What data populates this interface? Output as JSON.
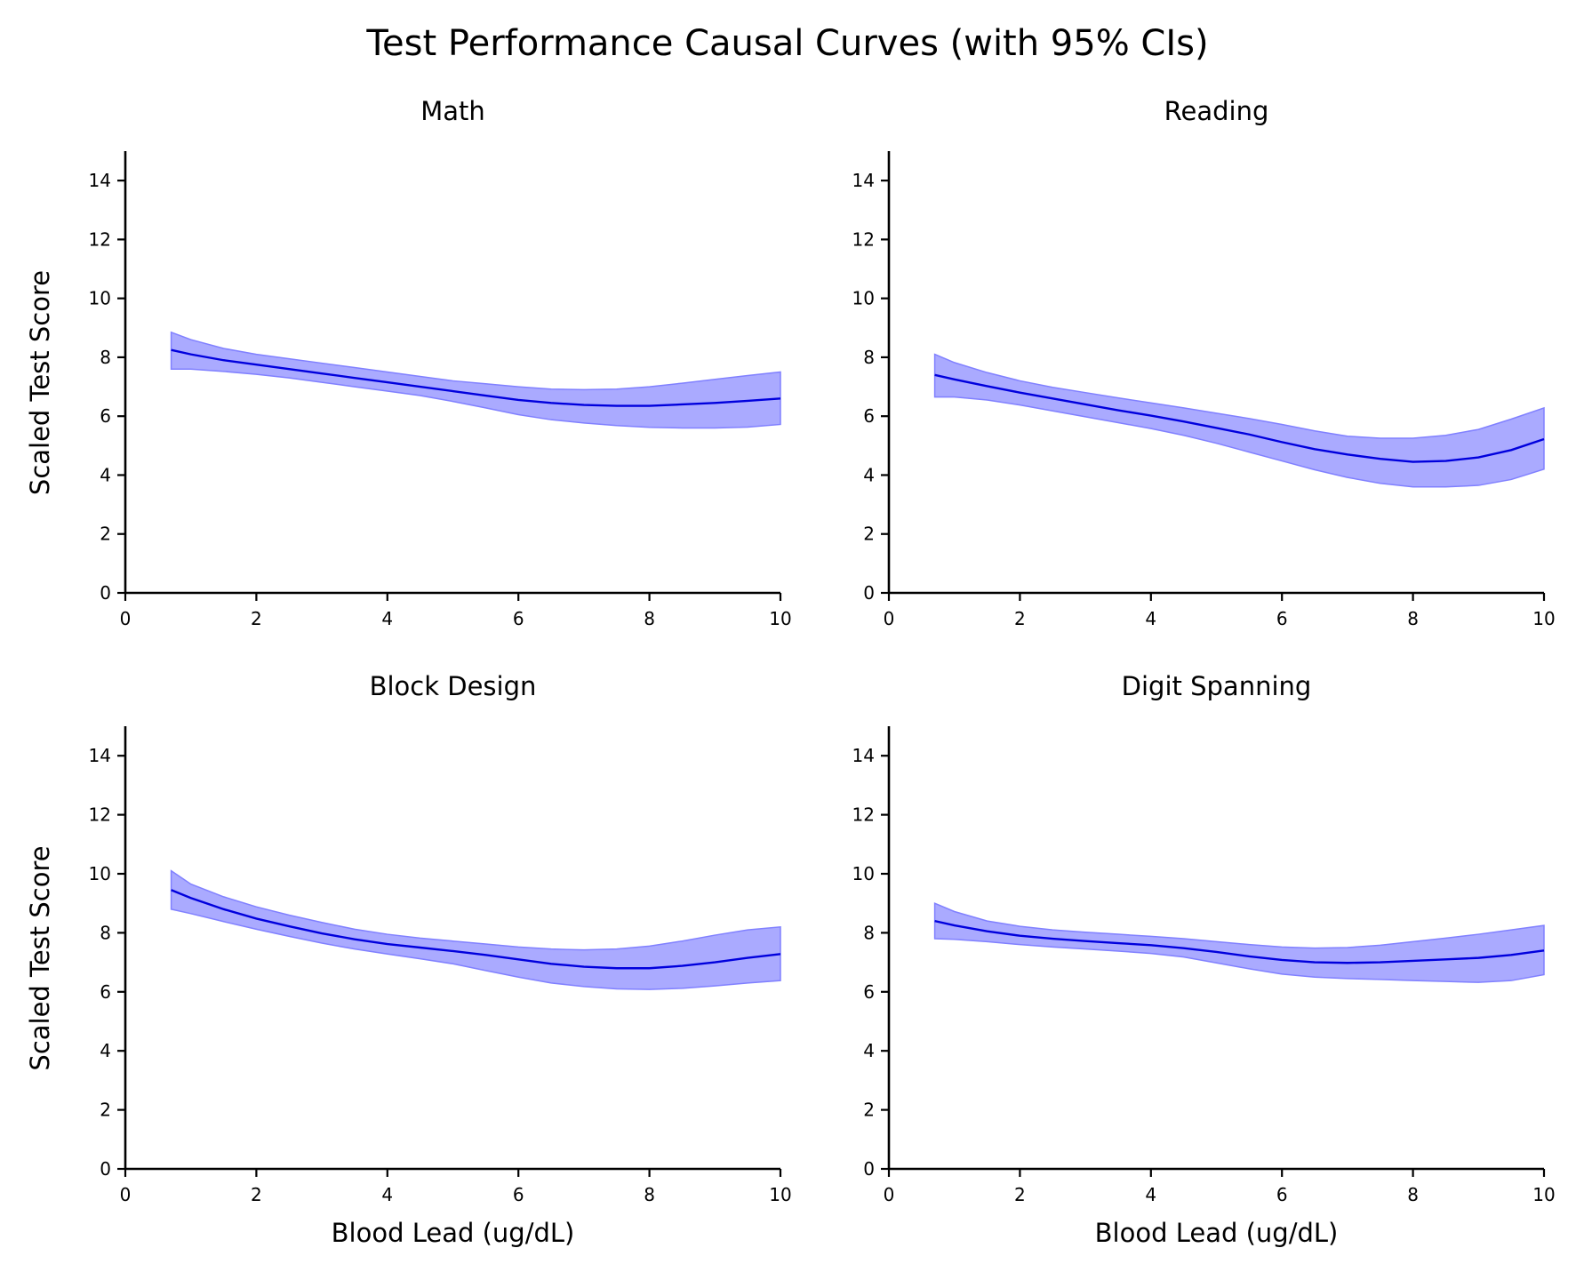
{
  "suptitle": "Test Performance Causal Curves (with 95% CIs)",
  "colors": {
    "line": "#0000dd",
    "band": "#aaaaff",
    "band_edge": "#8080ff",
    "axis": "#000000"
  },
  "chart_data": [
    {
      "type": "line",
      "title": "Math",
      "xlabel": "",
      "ylabel": "Scaled Test Score",
      "xlim": [
        0,
        10
      ],
      "ylim": [
        0,
        15
      ],
      "xticks": [
        0,
        2,
        4,
        6,
        8,
        10
      ],
      "yticks": [
        0,
        2,
        4,
        6,
        8,
        10,
        12,
        14
      ],
      "x": [
        0.7,
        1.0,
        1.5,
        2.0,
        2.5,
        3.0,
        3.5,
        4.0,
        4.5,
        5.0,
        5.5,
        6.0,
        6.5,
        7.0,
        7.5,
        8.0,
        8.5,
        9.0,
        9.5,
        10.0
      ],
      "series": [
        {
          "values": [
            8.25,
            8.1,
            7.9,
            7.75,
            7.6,
            7.45,
            7.3,
            7.15,
            7.0,
            6.85,
            6.7,
            6.55,
            6.45,
            6.38,
            6.35,
            6.35,
            6.4,
            6.45,
            6.52,
            6.6
          ]
        }
      ],
      "ci_lower": [
        7.6,
        7.6,
        7.52,
        7.42,
        7.3,
        7.15,
        7.0,
        6.85,
        6.7,
        6.5,
        6.28,
        6.05,
        5.88,
        5.77,
        5.68,
        5.62,
        5.6,
        5.6,
        5.63,
        5.72
      ],
      "ci_upper": [
        8.85,
        8.6,
        8.3,
        8.1,
        7.95,
        7.8,
        7.65,
        7.5,
        7.35,
        7.2,
        7.1,
        7.0,
        6.92,
        6.9,
        6.92,
        7.0,
        7.12,
        7.25,
        7.38,
        7.5
      ]
    },
    {
      "type": "line",
      "title": "Reading",
      "xlabel": "",
      "ylabel": "",
      "xlim": [
        0,
        10
      ],
      "ylim": [
        0,
        15
      ],
      "xticks": [
        0,
        2,
        4,
        6,
        8,
        10
      ],
      "yticks": [
        0,
        2,
        4,
        6,
        8,
        10,
        12,
        14
      ],
      "x": [
        0.7,
        1.0,
        1.5,
        2.0,
        2.5,
        3.0,
        3.5,
        4.0,
        4.5,
        5.0,
        5.5,
        6.0,
        6.5,
        7.0,
        7.5,
        8.0,
        8.5,
        9.0,
        9.5,
        10.0
      ],
      "series": [
        {
          "values": [
            7.4,
            7.25,
            7.02,
            6.8,
            6.6,
            6.4,
            6.2,
            6.02,
            5.82,
            5.6,
            5.38,
            5.12,
            4.88,
            4.7,
            4.55,
            4.45,
            4.48,
            4.6,
            4.85,
            5.22
          ]
        }
      ],
      "ci_lower": [
        6.65,
        6.65,
        6.55,
        6.38,
        6.18,
        5.98,
        5.78,
        5.58,
        5.35,
        5.08,
        4.78,
        4.48,
        4.18,
        3.92,
        3.72,
        3.6,
        3.6,
        3.65,
        3.85,
        4.2
      ],
      "ci_upper": [
        8.1,
        7.82,
        7.48,
        7.2,
        6.98,
        6.8,
        6.62,
        6.45,
        6.28,
        6.1,
        5.92,
        5.72,
        5.5,
        5.32,
        5.25,
        5.25,
        5.35,
        5.55,
        5.9,
        6.28
      ]
    },
    {
      "type": "line",
      "title": "Block Design",
      "xlabel": "Blood Lead (ug/dL)",
      "ylabel": "Scaled Test Score",
      "xlim": [
        0,
        10
      ],
      "ylim": [
        0,
        15
      ],
      "xticks": [
        0,
        2,
        4,
        6,
        8,
        10
      ],
      "yticks": [
        0,
        2,
        4,
        6,
        8,
        10,
        12,
        14
      ],
      "x": [
        0.7,
        1.0,
        1.5,
        2.0,
        2.5,
        3.0,
        3.5,
        4.0,
        4.5,
        5.0,
        5.5,
        6.0,
        6.5,
        7.0,
        7.5,
        8.0,
        8.5,
        9.0,
        9.5,
        10.0
      ],
      "series": [
        {
          "values": [
            9.45,
            9.18,
            8.8,
            8.48,
            8.22,
            7.98,
            7.78,
            7.62,
            7.5,
            7.38,
            7.25,
            7.1,
            6.95,
            6.85,
            6.8,
            6.8,
            6.88,
            7.0,
            7.15,
            7.28
          ]
        }
      ],
      "ci_lower": [
        8.8,
        8.65,
        8.38,
        8.12,
        7.88,
        7.65,
        7.45,
        7.28,
        7.12,
        6.95,
        6.72,
        6.5,
        6.3,
        6.18,
        6.1,
        6.08,
        6.12,
        6.2,
        6.3,
        6.38
      ],
      "ci_upper": [
        10.1,
        9.65,
        9.22,
        8.88,
        8.6,
        8.35,
        8.12,
        7.95,
        7.82,
        7.72,
        7.62,
        7.52,
        7.45,
        7.42,
        7.45,
        7.55,
        7.72,
        7.92,
        8.1,
        8.2
      ]
    },
    {
      "type": "line",
      "title": "Digit Spanning",
      "xlabel": "Blood Lead (ug/dL)",
      "ylabel": "",
      "xlim": [
        0,
        10
      ],
      "ylim": [
        0,
        15
      ],
      "xticks": [
        0,
        2,
        4,
        6,
        8,
        10
      ],
      "yticks": [
        0,
        2,
        4,
        6,
        8,
        10,
        12,
        14
      ],
      "x": [
        0.7,
        1.0,
        1.5,
        2.0,
        2.5,
        3.0,
        3.5,
        4.0,
        4.5,
        5.0,
        5.5,
        6.0,
        6.5,
        7.0,
        7.5,
        8.0,
        8.5,
        9.0,
        9.5,
        10.0
      ],
      "series": [
        {
          "values": [
            8.4,
            8.25,
            8.05,
            7.9,
            7.8,
            7.72,
            7.65,
            7.58,
            7.48,
            7.35,
            7.2,
            7.08,
            7.0,
            6.98,
            7.0,
            7.05,
            7.1,
            7.15,
            7.25,
            7.4
          ]
        }
      ],
      "ci_lower": [
        7.8,
        7.78,
        7.7,
        7.6,
        7.52,
        7.45,
        7.38,
        7.3,
        7.18,
        6.98,
        6.78,
        6.6,
        6.5,
        6.45,
        6.42,
        6.38,
        6.35,
        6.32,
        6.38,
        6.58
      ],
      "ci_upper": [
        9.0,
        8.72,
        8.4,
        8.22,
        8.1,
        8.02,
        7.95,
        7.88,
        7.8,
        7.7,
        7.6,
        7.52,
        7.48,
        7.5,
        7.58,
        7.7,
        7.82,
        7.95,
        8.1,
        8.25
      ]
    }
  ]
}
